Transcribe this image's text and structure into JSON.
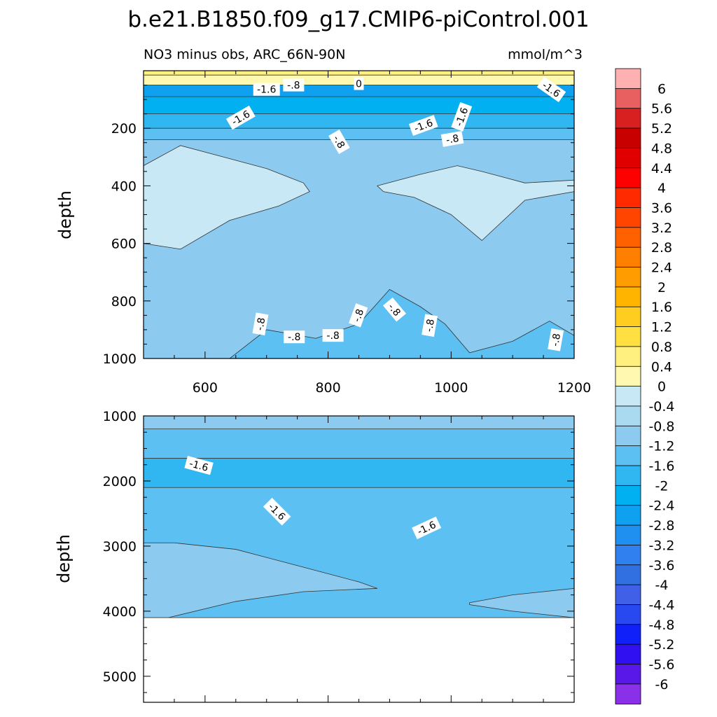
{
  "title": "b.e21.B1850.f09_g17.CMIP6-piControl.001",
  "chart_data": [
    {
      "type": "heatmap",
      "subtitle": "NO3 minus obs, ARC_66N-90N",
      "units": "mmol/m^3",
      "ylabel": "depth",
      "xlabel": "",
      "xlim": [
        500,
        1200
      ],
      "ylim": [
        0,
        1000
      ],
      "y_reversed": true,
      "xticks": [
        "600",
        "800",
        "1000",
        "1200"
      ],
      "yticks": [
        "200",
        "400",
        "600",
        "800",
        "1000"
      ],
      "bands": [
        {
          "top": 0,
          "bottom": 15,
          "value": 0.6
        },
        {
          "top": 15,
          "bottom": 50,
          "value": 0.2
        },
        {
          "top": 50,
          "bottom": 90,
          "value": -2.6
        },
        {
          "top": 90,
          "bottom": 150,
          "value": -2.2
        },
        {
          "top": 150,
          "bottom": 200,
          "value": -1.8
        },
        {
          "top": 200,
          "bottom": 240,
          "value": -1.4
        },
        {
          "top": 240,
          "bottom": 1000,
          "value": -1.0
        }
      ],
      "regions": [
        {
          "value": -0.2,
          "x": [
            500,
            560,
            630,
            700,
            760,
            770,
            720,
            640,
            560,
            500
          ],
          "y": [
            330,
            260,
            300,
            340,
            390,
            420,
            470,
            520,
            620,
            600
          ]
        },
        {
          "value": -0.2,
          "x": [
            880,
            950,
            1010,
            1050,
            1120,
            1200,
            1200,
            1120,
            1050,
            1000,
            940,
            890
          ],
          "y": [
            400,
            360,
            330,
            350,
            390,
            380,
            420,
            450,
            590,
            500,
            440,
            420
          ]
        },
        {
          "value": -1.2,
          "x": [
            640,
            700,
            780,
            850,
            900,
            950,
            990,
            1030,
            1100,
            1160,
            1200,
            1200,
            640
          ],
          "y": [
            1000,
            900,
            930,
            880,
            760,
            820,
            880,
            980,
            940,
            870,
            920,
            1000,
            1000
          ]
        }
      ],
      "contour_labels": [
        {
          "text": "-1.6",
          "x": 700,
          "y": 65,
          "angle": 0
        },
        {
          "text": "-.8",
          "x": 744,
          "y": 50,
          "angle": 0
        },
        {
          "text": "0",
          "x": 850,
          "y": 45,
          "angle": 0
        },
        {
          "text": "-1.6",
          "x": 1163,
          "y": 65,
          "angle": 35
        },
        {
          "text": "-1.6",
          "x": 658,
          "y": 163,
          "angle": -30
        },
        {
          "text": "-1.6",
          "x": 955,
          "y": 190,
          "angle": -20
        },
        {
          "text": "-1.6",
          "x": 1017,
          "y": 160,
          "angle": -70
        },
        {
          "text": "-.8",
          "x": 1002,
          "y": 237,
          "angle": -10
        },
        {
          "text": "-.8",
          "x": 818,
          "y": 247,
          "angle": 60
        },
        {
          "text": "-.8",
          "x": 690,
          "y": 880,
          "angle": -80
        },
        {
          "text": "-.8",
          "x": 745,
          "y": 925,
          "angle": 0
        },
        {
          "text": "-.8",
          "x": 808,
          "y": 920,
          "angle": 0
        },
        {
          "text": "-.8",
          "x": 849,
          "y": 850,
          "angle": -70
        },
        {
          "text": "-.8",
          "x": 908,
          "y": 830,
          "angle": 50
        },
        {
          "text": "-.8",
          "x": 965,
          "y": 885,
          "angle": -80
        },
        {
          "text": "-.8",
          "x": 1170,
          "y": 935,
          "angle": -80
        }
      ]
    },
    {
      "type": "heatmap",
      "ylabel": "depth",
      "xlabel": "",
      "xlim": [
        500,
        1200
      ],
      "ylim": [
        1000,
        5400
      ],
      "y_reversed": true,
      "data_bottom": 4100,
      "yticks": [
        "1000",
        "2000",
        "3000",
        "4000",
        "5000"
      ],
      "bands": [
        {
          "top": 1000,
          "bottom": 1200,
          "value": -1.0
        },
        {
          "top": 1200,
          "bottom": 1650,
          "value": -1.4
        },
        {
          "top": 1650,
          "bottom": 2100,
          "value": -1.8
        },
        {
          "top": 2100,
          "bottom": 4100,
          "value": -1.4
        }
      ],
      "regions": [
        {
          "value": -1.0,
          "x": [
            500,
            550,
            650,
            750,
            850,
            880,
            760,
            650,
            540,
            500
          ],
          "y": [
            2950,
            2950,
            3050,
            3300,
            3550,
            3650,
            3700,
            3850,
            4100,
            4100
          ]
        },
        {
          "value": -1.0,
          "x": [
            1030,
            1100,
            1200,
            1200,
            1100,
            1030
          ],
          "y": [
            3870,
            3750,
            3650,
            4100,
            4000,
            3900
          ]
        }
      ],
      "contour_labels": [
        {
          "text": "-1.6",
          "x": 590,
          "y": 1760,
          "angle": 15
        },
        {
          "text": "-1.6",
          "x": 717,
          "y": 2470,
          "angle": 45
        },
        {
          "text": "-1.6",
          "x": 960,
          "y": 2720,
          "angle": -25
        }
      ]
    },
    {
      "type": "colorbar",
      "levels": [
        "6",
        "5.6",
        "5.2",
        "4.8",
        "4.4",
        "4",
        "3.6",
        "3.2",
        "2.8",
        "2.4",
        "2",
        "1.6",
        "1.2",
        "0.8",
        "0.4",
        "0",
        "-0.4",
        "-0.8",
        "-1.2",
        "-1.6",
        "-2",
        "-2.4",
        "-2.8",
        "-3.2",
        "-3.6",
        "-4",
        "-4.4",
        "-4.8",
        "-5.2",
        "-5.6",
        "-6"
      ],
      "colors": [
        "#ffb0b0",
        "#e86060",
        "#d82020",
        "#c80000",
        "#e00000",
        "#ff0000",
        "#ff2a00",
        "#ff4500",
        "#ff6000",
        "#ff8000",
        "#ff9c00",
        "#ffb400",
        "#ffcc20",
        "#ffe040",
        "#fff080",
        "#fff8b0",
        "#c8e8f5",
        "#aadaf0",
        "#8ccaef",
        "#5cc0f2",
        "#30b6f0",
        "#00b0f0",
        "#10a0f0",
        "#2090f0",
        "#3080f0",
        "#3070e0",
        "#4060e8",
        "#2848f0",
        "#1020f8",
        "#3010f0",
        "#5a18e8",
        "#8a30e8"
      ]
    }
  ]
}
